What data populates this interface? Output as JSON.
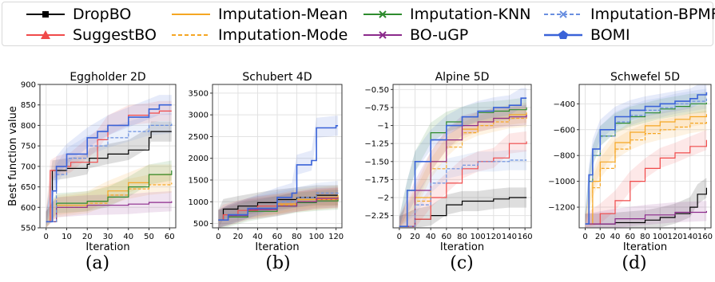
{
  "legend": {
    "entries": [
      {
        "label": "DropBO",
        "color": "#000000",
        "dash": "solid",
        "marker": "square"
      },
      {
        "label": "SuggestBO",
        "color": "#f04a4a",
        "dash": "solid",
        "marker": "triangle"
      },
      {
        "label": "Imputation-Mean",
        "color": "#f5a623",
        "dash": "solid",
        "marker": "none"
      },
      {
        "label": "Imputation-Mode",
        "color": "#f5a623",
        "dash": "dashed",
        "marker": "none"
      },
      {
        "label": "Imputation-KNN",
        "color": "#2e8b2e",
        "dash": "solid",
        "marker": "x"
      },
      {
        "label": "BO-uGP",
        "color": "#8b2a8b",
        "dash": "solid",
        "marker": "x"
      },
      {
        "label": "Imputation-BPMF",
        "color": "#6a8fe0",
        "dash": "dashed",
        "marker": "x"
      },
      {
        "label": "BOMI",
        "color": "#3a63d8",
        "dash": "solid",
        "marker": "pentagon"
      }
    ]
  },
  "captions": [
    "(a)",
    "(b)",
    "(c)",
    "(d)"
  ],
  "chart_data": [
    {
      "type": "line",
      "title": "Eggholder 2D",
      "xlabel": "Iteration",
      "ylabel": "Best function value",
      "xlim": [
        -3,
        63
      ],
      "ylim": [
        550,
        900
      ],
      "xticks": [
        0,
        10,
        20,
        30,
        40,
        50,
        60
      ],
      "yticks": [
        550,
        600,
        650,
        700,
        750,
        800,
        850,
        900
      ],
      "grid": true,
      "series": [
        {
          "name": "DropBO",
          "x": [
            0,
            3,
            10,
            20,
            21,
            30,
            40,
            50,
            51,
            61
          ],
          "y": [
            565,
            690,
            695,
            705,
            720,
            730,
            740,
            770,
            785,
            785
          ]
        },
        {
          "name": "SuggestBO",
          "x": [
            0,
            2,
            5,
            12,
            25,
            30,
            40,
            50,
            55,
            61
          ],
          "y": [
            565,
            690,
            700,
            710,
            765,
            800,
            825,
            830,
            835,
            835
          ]
        },
        {
          "name": "Imputation-Mean",
          "x": [
            0,
            5,
            20,
            30,
            40,
            50,
            61
          ],
          "y": [
            565,
            605,
            615,
            640,
            660,
            680,
            680
          ]
        },
        {
          "name": "Imputation-Mode",
          "x": [
            0,
            5,
            20,
            30,
            40,
            50,
            61
          ],
          "y": [
            565,
            600,
            610,
            630,
            645,
            655,
            660
          ]
        },
        {
          "name": "Imputation-KNN",
          "x": [
            0,
            5,
            20,
            30,
            40,
            50,
            61
          ],
          "y": [
            565,
            610,
            615,
            625,
            650,
            680,
            690
          ]
        },
        {
          "name": "BO-uGP",
          "x": [
            0,
            5,
            20,
            40,
            50,
            61
          ],
          "y": [
            565,
            600,
            605,
            608,
            612,
            615
          ]
        },
        {
          "name": "Imputation-BPMF",
          "x": [
            0,
            5,
            10,
            20,
            30,
            40,
            50,
            61
          ],
          "y": [
            565,
            680,
            720,
            750,
            770,
            785,
            800,
            805
          ]
        },
        {
          "name": "BOMI",
          "x": [
            0,
            3,
            5,
            10,
            20,
            25,
            30,
            40,
            50,
            55,
            61
          ],
          "y": [
            565,
            640,
            700,
            730,
            770,
            785,
            800,
            820,
            840,
            850,
            850
          ]
        }
      ]
    },
    {
      "type": "line",
      "title": "Schubert 4D",
      "xlabel": "Iteration",
      "ylabel": "",
      "xlim": [
        -6,
        126
      ],
      "ylim": [
        400,
        3700
      ],
      "xticks": [
        0,
        20,
        40,
        60,
        80,
        100,
        120
      ],
      "yticks": [
        500,
        1000,
        1500,
        2000,
        2500,
        3000,
        3500
      ],
      "grid": true,
      "series": [
        {
          "name": "DropBO",
          "x": [
            0,
            5,
            20,
            40,
            60,
            80,
            100,
            122
          ],
          "y": [
            580,
            830,
            900,
            980,
            1050,
            1100,
            1150,
            1150
          ]
        },
        {
          "name": "SuggestBO",
          "x": [
            0,
            5,
            20,
            40,
            60,
            80,
            100,
            122
          ],
          "y": [
            580,
            700,
            800,
            900,
            950,
            1000,
            1050,
            1080
          ]
        },
        {
          "name": "Imputation-Mean",
          "x": [
            0,
            10,
            30,
            60,
            80,
            100,
            122
          ],
          "y": [
            580,
            700,
            850,
            950,
            1050,
            1100,
            1150
          ]
        },
        {
          "name": "Imputation-Mode",
          "x": [
            0,
            10,
            30,
            60,
            80,
            100,
            122
          ],
          "y": [
            580,
            680,
            820,
            920,
            1000,
            1050,
            1100
          ]
        },
        {
          "name": "Imputation-KNN",
          "x": [
            0,
            10,
            30,
            60,
            80,
            100,
            122
          ],
          "y": [
            580,
            650,
            780,
            900,
            980,
            1020,
            1050
          ]
        },
        {
          "name": "BO-uGP",
          "x": [
            0,
            10,
            30,
            60,
            80,
            100,
            122
          ],
          "y": [
            580,
            680,
            820,
            900,
            1000,
            1080,
            1100
          ]
        },
        {
          "name": "Imputation-BPMF",
          "x": [
            0,
            10,
            30,
            60,
            80,
            100,
            122
          ],
          "y": [
            580,
            700,
            850,
            1000,
            1100,
            1200,
            1250
          ]
        },
        {
          "name": "BOMI",
          "x": [
            0,
            10,
            30,
            60,
            75,
            80,
            95,
            100,
            120,
            122
          ],
          "y": [
            580,
            700,
            850,
            1100,
            1200,
            1850,
            1950,
            2700,
            2750,
            2750
          ]
        }
      ]
    },
    {
      "type": "line",
      "title": "Alpine 5D",
      "xlabel": "Iteration",
      "ylabel": "",
      "xlim": [
        -8,
        168
      ],
      "ylim": [
        -2.42,
        -0.43
      ],
      "xticks": [
        0,
        20,
        40,
        60,
        80,
        100,
        120,
        140,
        160
      ],
      "yticks": [
        -2.25,
        -2.0,
        -1.75,
        -1.5,
        -1.25,
        -1.0,
        -0.75,
        -0.5
      ],
      "grid": true,
      "series": [
        {
          "name": "DropBO",
          "x": [
            0,
            20,
            40,
            60,
            80,
            100,
            120,
            140,
            162
          ],
          "y": [
            -2.4,
            -2.3,
            -2.25,
            -2.1,
            -2.05,
            -2.05,
            -2.02,
            -2.0,
            -2.0
          ]
        },
        {
          "name": "SuggestBO",
          "x": [
            0,
            20,
            40,
            60,
            80,
            100,
            120,
            140,
            162
          ],
          "y": [
            -2.4,
            -2.3,
            -2.0,
            -1.8,
            -1.6,
            -1.5,
            -1.45,
            -1.25,
            -1.22
          ]
        },
        {
          "name": "Imputation-Mean",
          "x": [
            0,
            20,
            40,
            60,
            80,
            100,
            120,
            140,
            162
          ],
          "y": [
            -2.4,
            -2.0,
            -1.5,
            -1.2,
            -1.05,
            -0.95,
            -0.9,
            -0.85,
            -0.82
          ]
        },
        {
          "name": "Imputation-Mode",
          "x": [
            0,
            20,
            40,
            60,
            80,
            100,
            120,
            140,
            162
          ],
          "y": [
            -2.4,
            -2.05,
            -1.6,
            -1.3,
            -1.1,
            -1.0,
            -0.95,
            -0.9,
            -0.88
          ]
        },
        {
          "name": "Imputation-KNN",
          "x": [
            0,
            10,
            20,
            40,
            60,
            80,
            100,
            120,
            140,
            162
          ],
          "y": [
            -2.4,
            -1.9,
            -1.5,
            -1.1,
            -0.95,
            -0.88,
            -0.82,
            -0.8,
            -0.78,
            -0.75
          ]
        },
        {
          "name": "BO-uGP",
          "x": [
            0,
            20,
            40,
            60,
            80,
            100,
            120,
            140,
            162
          ],
          "y": [
            -2.4,
            -1.9,
            -1.5,
            -1.2,
            -1.0,
            -0.95,
            -0.9,
            -0.88,
            -0.85
          ]
        },
        {
          "name": "Imputation-BPMF",
          "x": [
            0,
            20,
            40,
            60,
            80,
            100,
            120,
            140,
            162
          ],
          "y": [
            -2.4,
            -2.1,
            -1.8,
            -1.6,
            -1.55,
            -1.5,
            -1.5,
            -1.48,
            -1.48
          ]
        },
        {
          "name": "BOMI",
          "x": [
            0,
            10,
            20,
            40,
            60,
            80,
            100,
            120,
            140,
            155,
            162
          ],
          "y": [
            -2.4,
            -1.9,
            -1.5,
            -1.2,
            -1.0,
            -0.88,
            -0.8,
            -0.75,
            -0.72,
            -0.62,
            -0.62
          ]
        }
      ]
    },
    {
      "type": "line",
      "title": "Schwefel 5D",
      "xlabel": "Iteration",
      "ylabel": "",
      "xlim": [
        -8,
        168
      ],
      "ylim": [
        -1360,
        -250
      ],
      "xticks": [
        0,
        20,
        40,
        60,
        80,
        100,
        120,
        140,
        160
      ],
      "yticks": [
        -1200,
        -1000,
        -800,
        -600,
        -400
      ],
      "grid": true,
      "series": [
        {
          "name": "DropBO",
          "x": [
            0,
            40,
            80,
            100,
            120,
            140,
            150,
            162
          ],
          "y": [
            -1330,
            -1320,
            -1300,
            -1280,
            -1250,
            -1200,
            -1100,
            -1050
          ]
        },
        {
          "name": "SuggestBO",
          "x": [
            0,
            20,
            40,
            60,
            80,
            100,
            120,
            140,
            162
          ],
          "y": [
            -1330,
            -1250,
            -1150,
            -1000,
            -900,
            -820,
            -780,
            -730,
            -680
          ]
        },
        {
          "name": "Imputation-Mean",
          "x": [
            0,
            10,
            20,
            40,
            60,
            80,
            100,
            120,
            140,
            162
          ],
          "y": [
            -1330,
            -1000,
            -850,
            -700,
            -620,
            -570,
            -540,
            -520,
            -500,
            -480
          ]
        },
        {
          "name": "Imputation-Mode",
          "x": [
            0,
            10,
            20,
            40,
            60,
            80,
            100,
            120,
            140,
            162
          ],
          "y": [
            -1330,
            -1050,
            -900,
            -750,
            -680,
            -630,
            -600,
            -580,
            -550,
            -530
          ]
        },
        {
          "name": "Imputation-KNN",
          "x": [
            0,
            5,
            10,
            20,
            40,
            60,
            80,
            100,
            120,
            140,
            162
          ],
          "y": [
            -1330,
            -1000,
            -800,
            -650,
            -550,
            -500,
            -470,
            -440,
            -420,
            -400,
            -390
          ]
        },
        {
          "name": "BO-uGP",
          "x": [
            0,
            40,
            80,
            120,
            162
          ],
          "y": [
            -1330,
            -1290,
            -1260,
            -1240,
            -1230
          ]
        },
        {
          "name": "Imputation-BPMF",
          "x": [
            0,
            5,
            10,
            20,
            40,
            60,
            80,
            100,
            120,
            140,
            162
          ],
          "y": [
            -1330,
            -1000,
            -800,
            -650,
            -540,
            -490,
            -450,
            -430,
            -400,
            -380,
            -360
          ]
        },
        {
          "name": "BOMI",
          "x": [
            0,
            5,
            10,
            20,
            40,
            60,
            80,
            100,
            120,
            140,
            150,
            162
          ],
          "y": [
            -1330,
            -950,
            -750,
            -600,
            -500,
            -450,
            -420,
            -400,
            -380,
            -360,
            -330,
            -310
          ]
        }
      ]
    }
  ]
}
